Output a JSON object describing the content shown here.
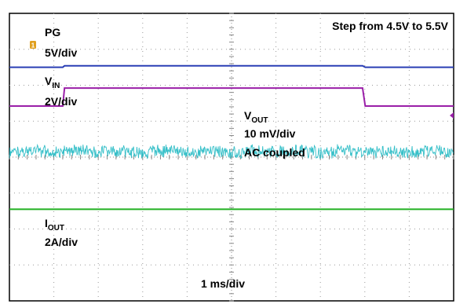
{
  "chart_data": {
    "type": "line",
    "title": "Step from 4.5V to 5.5V",
    "xlabel": "1 ms/div",
    "x_divisions": 10,
    "y_divisions": 8,
    "grid": true,
    "step_time_divs": [
      1.2,
      7.95
    ],
    "channels": [
      {
        "id": "pg",
        "name": "PG",
        "scale": "5V/div",
        "color": "#2a3fb5",
        "offset_div": 6.5,
        "step_div": 0.04,
        "marker": "1"
      },
      {
        "id": "vin",
        "name_main": "V",
        "name_sub": "IN",
        "scale": "2V/div",
        "color": "#9a1fa8",
        "offset_div": 5.42,
        "step_div": 0.5,
        "marker": "3"
      },
      {
        "id": "vout",
        "name_main": "V",
        "name_sub": "OUT",
        "scale": "10 mV/div",
        "coupling": "AC coupled",
        "color": "#1fb8c2",
        "offset_div": 4.15,
        "noise": true
      },
      {
        "id": "iout",
        "name_main": "I",
        "name_sub": "OUT",
        "scale": "2A/div",
        "color": "#22b022",
        "offset_div": 2.55,
        "step_div": 0
      }
    ]
  }
}
